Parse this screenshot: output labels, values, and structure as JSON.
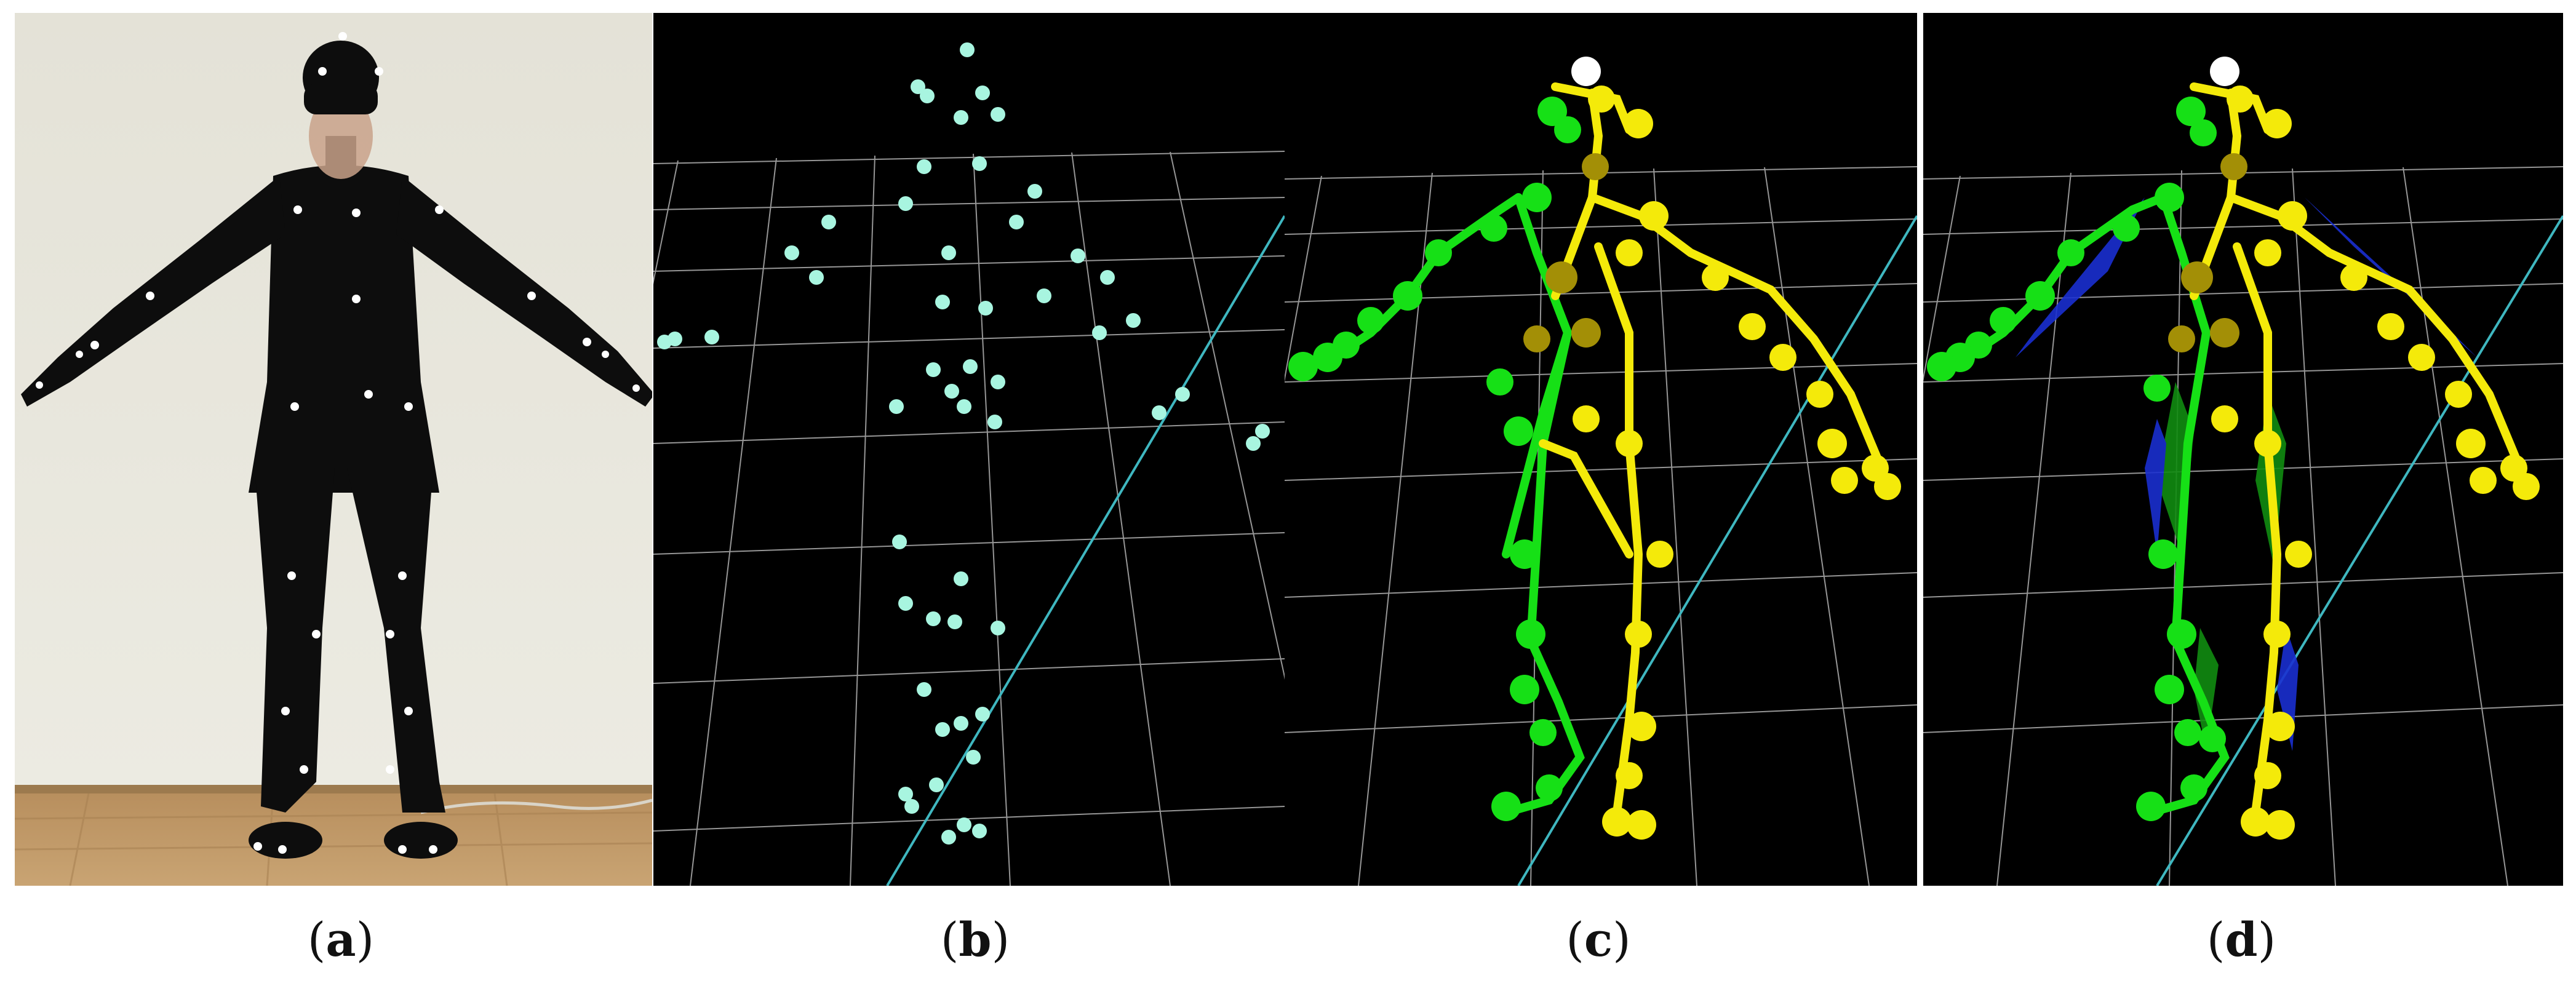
{
  "figure": {
    "panels": [
      {
        "id": "a",
        "caption_open": "(",
        "caption_letter": "a",
        "caption_close": ")",
        "content": "photo-subject-with-markers"
      },
      {
        "id": "b",
        "caption_open": "(",
        "caption_letter": "b",
        "caption_close": ")",
        "content": "marker-point-cloud"
      },
      {
        "id": "c",
        "caption_open": "(",
        "caption_letter": "c",
        "caption_close": ")",
        "content": "fitted-skeleton"
      },
      {
        "id": "d",
        "caption_open": "(",
        "caption_letter": "d",
        "caption_close": ")",
        "content": "fitted-skeleton-with-body-segments"
      }
    ],
    "colors": {
      "background_3d": "#000000",
      "grid": "#c8c8c8",
      "grid_axis": "#3fb7c0",
      "marker_points": "#a8f5e0",
      "left_side": "#16e016",
      "right_side": "#f4ea0a",
      "joint_dark": "#a38f06",
      "head_marker": "#ffffff",
      "segment_blue": "#1a2fd0",
      "wall": "#e9e7dc",
      "floor": "#c29a66",
      "suit": "#101010"
    }
  }
}
